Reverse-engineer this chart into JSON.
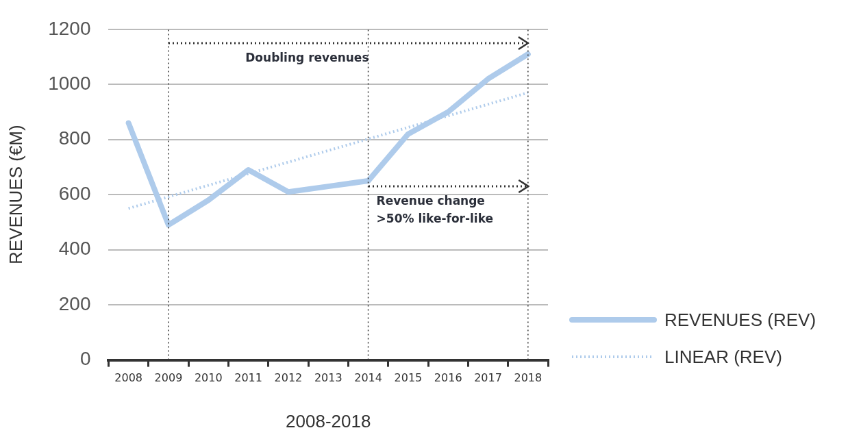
{
  "chart_data": {
    "type": "line",
    "xlabel": "2008-2018",
    "ylabel": "REVENUES (€M)",
    "categories": [
      "2008",
      "2009",
      "2010",
      "2011",
      "2012",
      "2013",
      "2014",
      "2015",
      "2016",
      "2017",
      "2018"
    ],
    "series": [
      {
        "name": "REVENUES (REV)",
        "color": "#aecbeb",
        "values": [
          860,
          490,
          580,
          690,
          610,
          630,
          650,
          820,
          900,
          1020,
          1110
        ],
        "line_style": "solid"
      },
      {
        "name": "LINEAR (REV)",
        "color": "#aecbeb",
        "values": [
          550,
          null,
          null,
          null,
          null,
          null,
          null,
          null,
          null,
          null,
          970
        ],
        "line_style": "dotted"
      }
    ],
    "ylim": [
      0,
      1200
    ],
    "yticks": [
      0,
      200,
      400,
      600,
      800,
      1000,
      1200
    ],
    "grid": "y",
    "legend": "right",
    "marker": "none",
    "ref_lines": [
      {
        "axis": "x",
        "value": "2009",
        "color": "#333333",
        "line_style": "dotted"
      },
      {
        "axis": "x",
        "value": "2014",
        "color": "#333333",
        "line_style": "dotted"
      },
      {
        "axis": "x",
        "value": "2018",
        "color": "#333333",
        "line_style": "dotted"
      },
      {
        "axis": "y",
        "value": 1150,
        "label": "Doubling revenues",
        "color": "#333333",
        "line_style": "dotted"
      },
      {
        "axis": "y",
        "value": 630,
        "label": "Revenue change >50% like-for-like",
        "color": "#333333",
        "line_style": "dotted"
      }
    ]
  }
}
